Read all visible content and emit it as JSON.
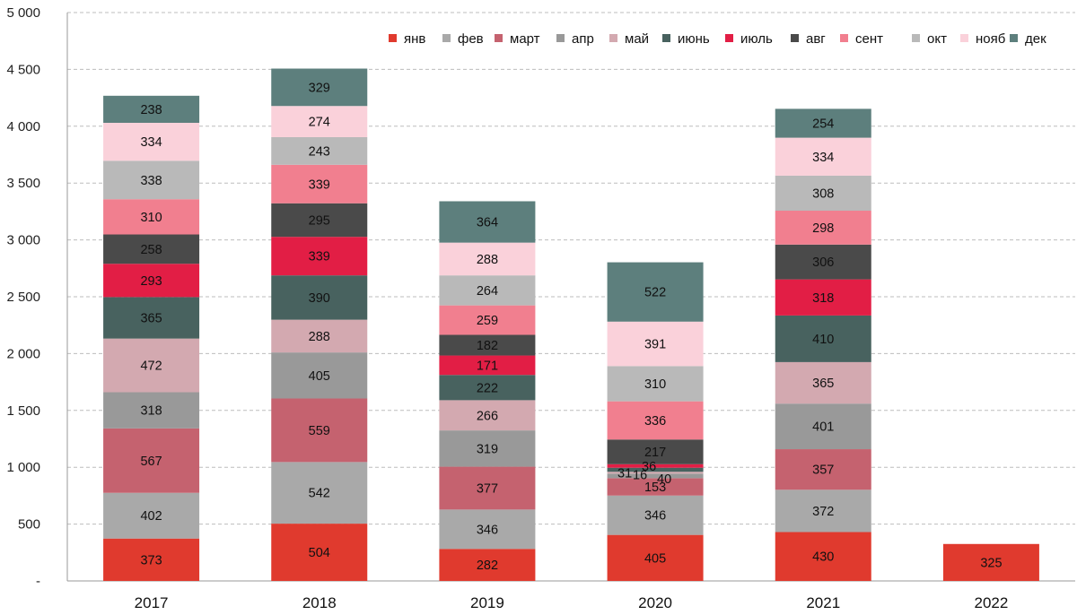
{
  "chart_data": {
    "type": "bar",
    "stacked": true,
    "title": "",
    "xlabel": "",
    "ylabel": "",
    "ylim": [
      0,
      5000
    ],
    "grid": true,
    "legend_position": "top-right",
    "categories": [
      "2017",
      "2018",
      "2019",
      "2020",
      "2021",
      "2022"
    ],
    "y_ticks": [
      0,
      500,
      1000,
      1500,
      2000,
      2500,
      3000,
      3500,
      4000,
      4500,
      5000
    ],
    "y_tick_labels": [
      "-",
      "500",
      "1 000",
      "1 500",
      "2 000",
      "2 500",
      "3 000",
      "3 500",
      "4 000",
      "4 500",
      "5 000"
    ],
    "series": [
      {
        "name": "янв",
        "color": "#e03a2e",
        "values": [
          373,
          504,
          282,
          405,
          430,
          325
        ]
      },
      {
        "name": "фев",
        "color": "#a9a9a9",
        "values": [
          402,
          542,
          346,
          346,
          372,
          null
        ]
      },
      {
        "name": "март",
        "color": "#c5626f",
        "values": [
          567,
          559,
          377,
          153,
          357,
          null
        ]
      },
      {
        "name": "апр",
        "color": "#999999",
        "values": [
          318,
          405,
          319,
          40,
          401,
          null
        ]
      },
      {
        "name": "май",
        "color": "#d3a9b0",
        "values": [
          472,
          288,
          266,
          16,
          365,
          null
        ]
      },
      {
        "name": "июнь",
        "color": "#48625f",
        "values": [
          365,
          390,
          222,
          36,
          410,
          null
        ]
      },
      {
        "name": "июль",
        "color": "#e21e45",
        "values": [
          293,
          339,
          171,
          31,
          318,
          null
        ]
      },
      {
        "name": "авг",
        "color": "#4a4a4a",
        "values": [
          258,
          295,
          182,
          217,
          306,
          null
        ]
      },
      {
        "name": "сент",
        "color": "#f17f8f",
        "values": [
          310,
          339,
          259,
          336,
          298,
          null
        ]
      },
      {
        "name": "окт",
        "color": "#b9b9b9",
        "values": [
          338,
          243,
          264,
          310,
          308,
          null
        ]
      },
      {
        "name": "нояб",
        "color": "#fad1da",
        "values": [
          334,
          274,
          288,
          391,
          334,
          null
        ]
      },
      {
        "name": "дек",
        "color": "#5d7f7d",
        "values": [
          238,
          329,
          364,
          522,
          254,
          null
        ]
      }
    ]
  }
}
